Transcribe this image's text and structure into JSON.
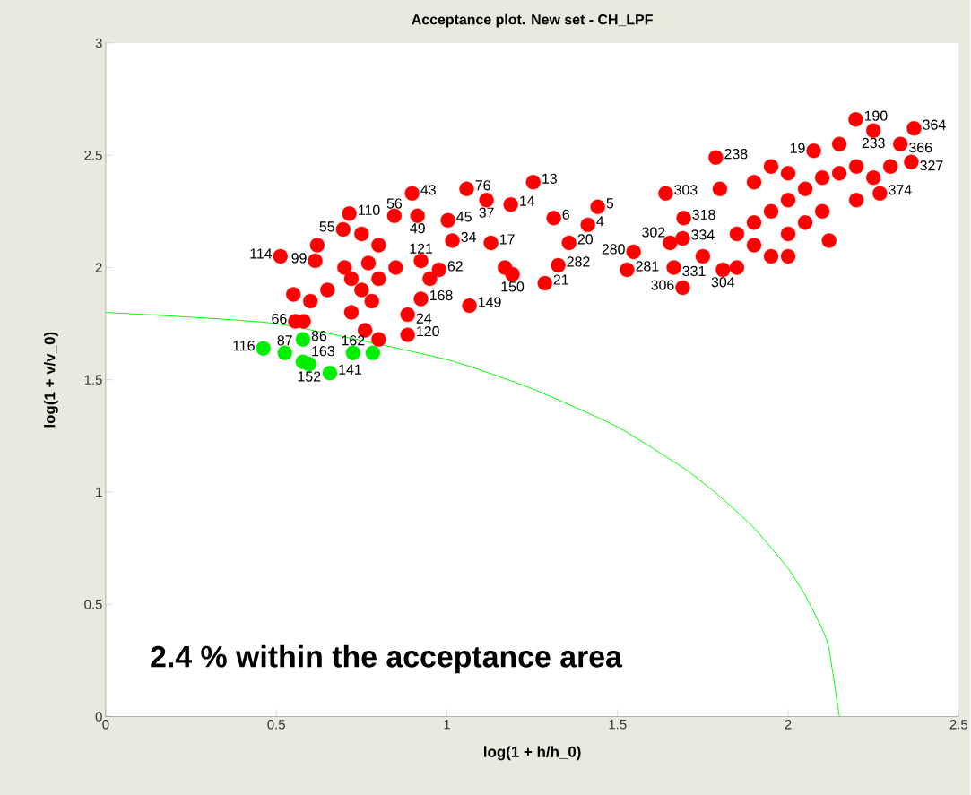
{
  "chart_data": {
    "type": "scatter",
    "title": "Acceptance plot. New set - CH_LPF",
    "xlabel": "log(1 + h/h_0)",
    "ylabel": "log(1 + v/v_0)",
    "annotations": [
      "2.4 % within the acceptance area",
      {
        "text": "43",
        "x": 0.898,
        "y": 2.33
      },
      {
        "text": "110",
        "x": 0.714,
        "y": 2.24
      },
      {
        "text": "114",
        "x": 0.512,
        "y": 2.05
      },
      {
        "text": "76",
        "x": 1.058,
        "y": 2.35
      },
      {
        "text": "37",
        "x": 1.116,
        "y": 2.3
      },
      {
        "text": "14",
        "x": 1.187,
        "y": 2.28
      },
      {
        "text": "13",
        "x": 1.253,
        "y": 2.38
      },
      {
        "text": "5",
        "x": 1.442,
        "y": 2.27
      },
      {
        "text": "6",
        "x": 1.313,
        "y": 2.22
      },
      {
        "text": "4",
        "x": 1.413,
        "y": 2.19
      },
      {
        "text": "20",
        "x": 1.358,
        "y": 2.11
      },
      {
        "text": "282",
        "x": 1.326,
        "y": 2.01
      },
      {
        "text": "21",
        "x": 1.287,
        "y": 1.93
      },
      {
        "text": "149",
        "x": 1.066,
        "y": 1.83
      },
      {
        "text": "150",
        "x": 1.192,
        "y": 1.97
      },
      {
        "text": "17",
        "x": 1.129,
        "y": 2.11
      },
      {
        "text": "55",
        "x": 0.696,
        "y": 2.17
      },
      {
        "text": "99",
        "x": 0.614,
        "y": 2.03
      },
      {
        "text": "66",
        "x": 0.556,
        "y": 1.76
      },
      {
        "text": "120",
        "x": 0.885,
        "y": 1.7
      },
      {
        "text": "24",
        "x": 0.885,
        "y": 1.79
      },
      {
        "text": "168",
        "x": 0.924,
        "y": 1.86
      },
      {
        "text": "62",
        "x": 0.977,
        "y": 1.99
      },
      {
        "text": "121",
        "x": 0.924,
        "y": 2.03
      },
      {
        "text": "49",
        "x": 0.914,
        "y": 2.23
      },
      {
        "text": "56",
        "x": 0.846,
        "y": 2.23
      },
      {
        "text": "45",
        "x": 1.003,
        "y": 2.21
      },
      {
        "text": "34",
        "x": 1.016,
        "y": 2.12
      },
      {
        "text": "303",
        "x": 1.641,
        "y": 2.33
      },
      {
        "text": "302",
        "x": 1.654,
        "y": 2.11
      },
      {
        "text": "281",
        "x": 1.528,
        "y": 1.99
      },
      {
        "text": "280",
        "x": 1.547,
        "y": 2.07
      },
      {
        "text": "334",
        "x": 1.691,
        "y": 2.13
      },
      {
        "text": "318",
        "x": 1.694,
        "y": 2.22
      },
      {
        "text": "304",
        "x": 1.809,
        "y": 1.99
      },
      {
        "text": "306",
        "x": 1.691,
        "y": 1.91
      },
      {
        "text": "331",
        "x": 1.665,
        "y": 2.0
      },
      {
        "text": "238",
        "x": 1.788,
        "y": 2.49
      },
      {
        "text": "190",
        "x": 2.198,
        "y": 2.66
      },
      {
        "text": "233",
        "x": 2.25,
        "y": 2.61
      },
      {
        "text": "364",
        "x": 2.369,
        "y": 2.62
      },
      {
        "text": "366",
        "x": 2.329,
        "y": 2.55
      },
      {
        "text": "374",
        "x": 2.269,
        "y": 2.33
      },
      {
        "text": "19",
        "x": 2.075,
        "y": 2.52
      },
      {
        "text": "327",
        "x": 2.361,
        "y": 2.47
      },
      {
        "text": "116",
        "x": 0.462,
        "y": 1.64
      },
      {
        "text": "87",
        "x": 0.525,
        "y": 1.62
      },
      {
        "text": "86",
        "x": 0.578,
        "y": 1.68
      },
      {
        "text": "163",
        "x": 0.578,
        "y": 1.58
      },
      {
        "text": "152",
        "x": 0.596,
        "y": 1.57
      },
      {
        "text": "141",
        "x": 0.657,
        "y": 1.53
      },
      {
        "text": "162",
        "x": 0.725,
        "y": 1.62
      }
    ],
    "xlim": [
      0,
      2.5
    ],
    "ylim": [
      0,
      3
    ],
    "xticks": [
      0,
      0.5,
      1,
      1.5,
      2,
      2.5
    ],
    "yticks": [
      0,
      0.5,
      1,
      1.5,
      2,
      2.5,
      3
    ],
    "marker": "circle",
    "grid": false,
    "series": [
      {
        "color": "#ff0000",
        "x": [
          0.898,
          0.714,
          0.512,
          1.058,
          1.116,
          1.187,
          1.253,
          1.442,
          1.313,
          1.413,
          1.358,
          1.326,
          1.287,
          1.066,
          1.192,
          1.129,
          0.696,
          0.614,
          0.556,
          0.885,
          0.885,
          0.924,
          0.977,
          0.924,
          0.914,
          0.846,
          1.003,
          1.016,
          1.641,
          1.654,
          1.528,
          1.547,
          1.691,
          1.694,
          1.809,
          1.691,
          1.665,
          1.788,
          2.198,
          2.25,
          2.369,
          2.329,
          2.269,
          2.075,
          2.361,
          0.75,
          0.8,
          0.85,
          0.78,
          0.72,
          0.7,
          0.65,
          0.6,
          0.55,
          0.62,
          0.75,
          0.8,
          0.95,
          0.76,
          0.8,
          0.72,
          0.58,
          0.77,
          1.17,
          1.9,
          1.95,
          2.0,
          2.05,
          2.1,
          2.15,
          2.2,
          1.85,
          1.9,
          2.0,
          2.05,
          1.95,
          2.1,
          2.2,
          2.25,
          2.3,
          1.9,
          2.0,
          1.75,
          1.85,
          2.0,
          2.12,
          2.15,
          1.95,
          1.8
        ],
        "values": [
          2.33,
          2.24,
          2.05,
          2.35,
          2.3,
          2.28,
          2.38,
          2.27,
          2.22,
          2.19,
          2.11,
          2.01,
          1.93,
          1.83,
          1.97,
          2.11,
          2.17,
          2.03,
          1.76,
          1.7,
          1.79,
          1.86,
          1.99,
          2.03,
          2.23,
          2.23,
          2.21,
          2.12,
          2.33,
          2.11,
          1.99,
          2.07,
          2.13,
          2.22,
          1.99,
          1.91,
          2.0,
          2.49,
          2.66,
          2.61,
          2.62,
          2.55,
          2.33,
          2.52,
          2.47,
          1.9,
          1.95,
          2.0,
          1.85,
          1.8,
          2.0,
          1.9,
          1.85,
          1.88,
          2.1,
          2.15,
          2.1,
          1.95,
          1.72,
          1.68,
          1.95,
          1.76,
          2.02,
          2.0,
          2.2,
          2.25,
          2.3,
          2.35,
          2.4,
          2.42,
          2.45,
          2.15,
          2.1,
          2.15,
          2.2,
          2.05,
          2.25,
          2.3,
          2.4,
          2.45,
          2.38,
          2.42,
          2.05,
          2.0,
          2.05,
          2.12,
          2.55,
          2.45,
          2.35
        ]
      },
      {
        "color": "#00ee00",
        "x": [
          0.462,
          0.525,
          0.578,
          0.578,
          0.596,
          0.657,
          0.725,
          0.783
        ],
        "values": [
          1.64,
          1.62,
          1.68,
          1.58,
          1.57,
          1.53,
          1.62,
          1.62
        ]
      },
      {
        "type": "line",
        "color": "#00ff00",
        "marker": "none",
        "x": [
          0,
          0.5,
          1.0,
          1.25,
          1.5,
          1.7,
          1.8,
          1.9,
          2.0,
          2.05,
          2.1,
          2.12,
          2.15
        ],
        "values": [
          1.8,
          1.75,
          1.59,
          1.46,
          1.29,
          1.1,
          0.98,
          0.84,
          0.66,
          0.54,
          0.39,
          0.3,
          0
        ]
      }
    ]
  }
}
